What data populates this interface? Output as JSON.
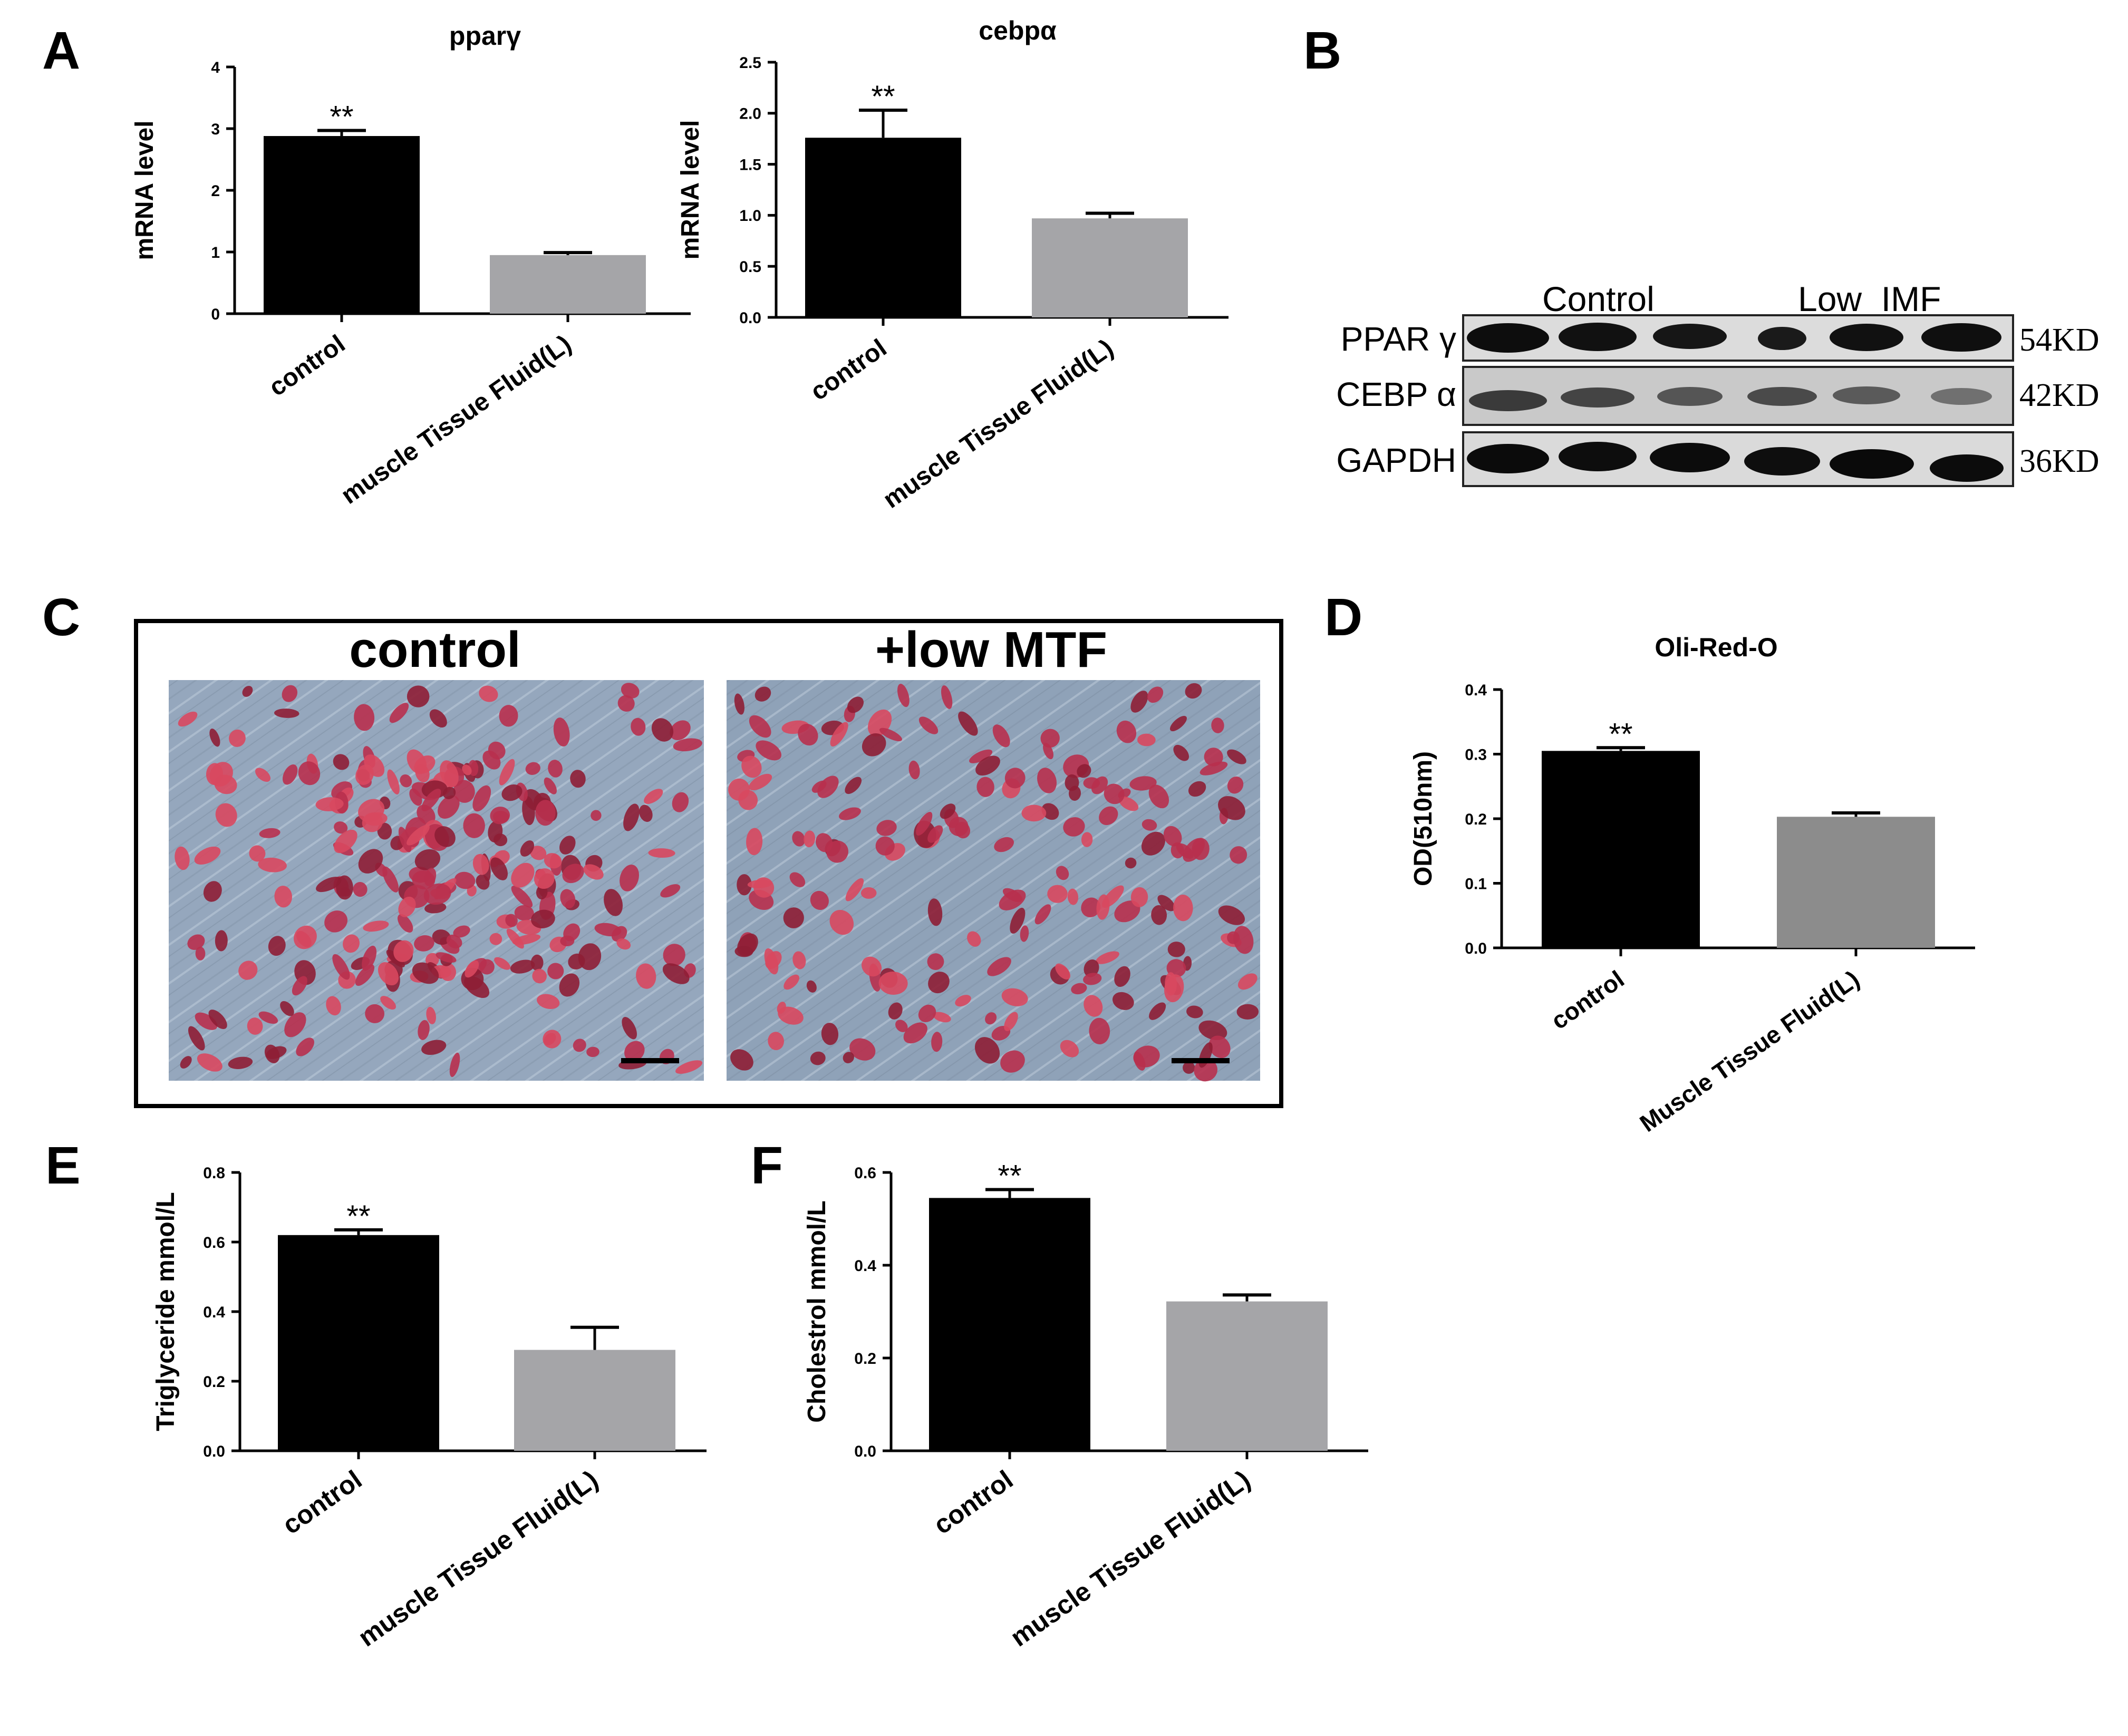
{
  "panel_labels": {
    "A": "A",
    "B": "B",
    "C": "C",
    "D": "D",
    "E": "E",
    "F": "F"
  },
  "chart_data": [
    {
      "id": "pparg",
      "panel": "A",
      "type": "bar",
      "title": "pparγ",
      "ylabel": "mRNA level",
      "xlabel": "",
      "categories": [
        "control",
        "muscle Tissue Fluid(L)"
      ],
      "values": [
        2.88,
        0.95
      ],
      "errors": [
        0.09,
        0.04
      ],
      "colors": [
        "#000000",
        "#a5a5a8"
      ],
      "ylim": [
        0,
        4
      ],
      "ticks": [
        "0",
        "1",
        "2",
        "3",
        "4"
      ],
      "significance": [
        "**",
        ""
      ],
      "grid": false
    },
    {
      "id": "cebpa",
      "panel": "A",
      "type": "bar",
      "title": "cebpα",
      "ylabel": "mRNA level",
      "xlabel": "",
      "categories": [
        "control",
        "muscle Tissue Fluid(L)"
      ],
      "values": [
        1.76,
        0.97
      ],
      "errors": [
        0.27,
        0.05
      ],
      "colors": [
        "#000000",
        "#a5a5a8"
      ],
      "ylim": [
        0,
        2.5
      ],
      "ticks": [
        "0.0",
        "0.5",
        "1.0",
        "1.5",
        "2.0",
        "2.5"
      ],
      "significance": [
        "**",
        ""
      ],
      "grid": false
    },
    {
      "id": "oilred",
      "panel": "D",
      "type": "bar",
      "title": "Oli-Red-O",
      "ylabel": "OD(510nm)",
      "xlabel": "",
      "categories": [
        "control",
        "Muscle Tissue Fluid(L)"
      ],
      "values": [
        0.305,
        0.203
      ],
      "errors": [
        0.005,
        0.006
      ],
      "colors": [
        "#000000",
        "#8c8c8c"
      ],
      "ylim": [
        0,
        0.4
      ],
      "ticks": [
        "0.0",
        "0.1",
        "0.2",
        "0.3",
        "0.4"
      ],
      "significance": [
        "**",
        ""
      ],
      "grid": false
    },
    {
      "id": "tg",
      "panel": "E",
      "type": "bar",
      "title": "",
      "ylabel": "Triglyceride mmol/L",
      "xlabel": "",
      "categories": [
        "control",
        "muscle Tissue Fluid(L)"
      ],
      "values": [
        0.62,
        0.29
      ],
      "errors": [
        0.015,
        0.065
      ],
      "colors": [
        "#000000",
        "#a5a5a8"
      ],
      "ylim": [
        0,
        0.8
      ],
      "ticks": [
        "0.0",
        "0.2",
        "0.4",
        "0.6",
        "0.8"
      ],
      "significance": [
        "**",
        ""
      ],
      "grid": false
    },
    {
      "id": "chol",
      "panel": "F",
      "type": "bar",
      "title": "",
      "ylabel": "Cholestrol mmol/L",
      "xlabel": "",
      "categories": [
        "control",
        "muscle Tissue Fluid(L)"
      ],
      "values": [
        0.545,
        0.322
      ],
      "errors": [
        0.018,
        0.014
      ],
      "colors": [
        "#000000",
        "#a5a5a8"
      ],
      "ylim": [
        0,
        0.6
      ],
      "ticks": [
        "0.0",
        "0.2",
        "0.4",
        "0.6"
      ],
      "significance": [
        "**",
        ""
      ],
      "grid": false
    }
  ],
  "blot": {
    "group_labels": [
      "Control",
      "Low  IMF"
    ],
    "rows": [
      {
        "label": "PPAR γ",
        "size": "54KD"
      },
      {
        "label": "CEBP α",
        "size": "42KD"
      },
      {
        "label": "GAPDH",
        "size": "36KD"
      }
    ]
  },
  "micrographs": {
    "left_label": "control",
    "right_label": "+low MTF"
  }
}
